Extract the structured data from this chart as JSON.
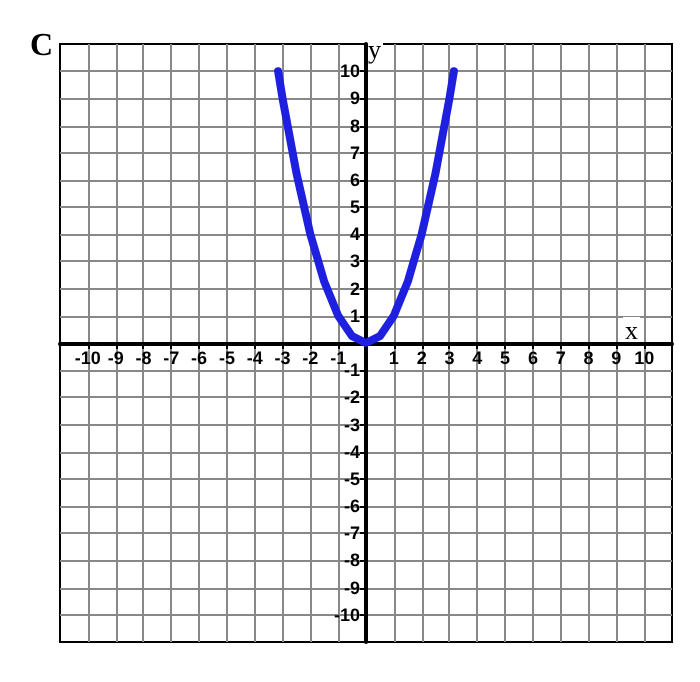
{
  "chart_data": {
    "type": "line",
    "title": "C",
    "xlabel": "x",
    "ylabel": "y",
    "x": [
      -3.16,
      -3,
      -2.5,
      -2,
      -1.5,
      -1,
      -0.5,
      0,
      0.5,
      1,
      1.5,
      2,
      2.5,
      3,
      3.16
    ],
    "series": [
      {
        "color": "#1f1fe0",
        "values": [
          10,
          9,
          6.25,
          4,
          2.25,
          1,
          0.25,
          0,
          0.25,
          1,
          2.25,
          4,
          6.25,
          9,
          10
        ]
      }
    ],
    "xlim": [
      -11,
      11
    ],
    "ylim": [
      -11,
      11
    ],
    "xticks": [
      -10,
      -9,
      -8,
      -7,
      -6,
      -5,
      -4,
      -3,
      -2,
      -1,
      {
        "value": 0,
        "label": null
      },
      1,
      2,
      3,
      4,
      5,
      6,
      7,
      8,
      9,
      10
    ],
    "yticks": [
      -10,
      -9,
      -8,
      -7,
      -6,
      -5,
      -4,
      -3,
      -2,
      -1,
      {
        "value": 0,
        "label": null
      },
      1,
      2,
      3,
      4,
      5,
      6,
      7,
      8,
      9,
      10
    ],
    "grid": true,
    "marker": "none",
    "line_style": "solid"
  }
}
